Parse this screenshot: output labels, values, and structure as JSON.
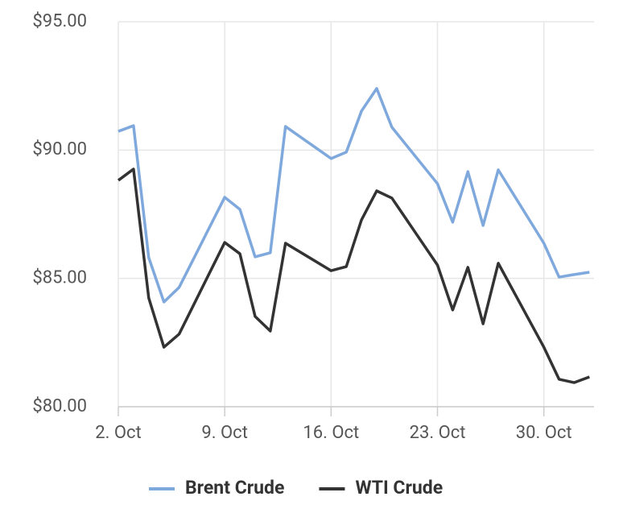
{
  "chart_data": {
    "type": "line",
    "x": [
      2,
      3,
      4,
      5,
      6,
      9,
      10,
      11,
      12,
      13,
      16,
      17,
      18,
      19,
      20,
      23,
      24,
      25,
      26,
      27,
      30,
      31,
      32,
      33
    ],
    "xlim": [
      2,
      33.3
    ],
    "xticks": [
      {
        "value": 2,
        "label": "2. Oct"
      },
      {
        "value": 9,
        "label": "9. Oct"
      },
      {
        "value": 16,
        "label": "16. Oct"
      },
      {
        "value": 23,
        "label": "23. Oct"
      },
      {
        "value": 30,
        "label": "30. Oct"
      }
    ],
    "ylim": [
      80,
      95
    ],
    "yticks": [
      {
        "value": 80,
        "label": "$80.00"
      },
      {
        "value": 85,
        "label": "$85.00"
      },
      {
        "value": 90,
        "label": "$90.00"
      },
      {
        "value": 95,
        "label": "$95.00"
      }
    ],
    "grid": true,
    "legend": "bottom",
    "series": [
      {
        "name": "Brent Crude",
        "color": "#7fa9dd",
        "values": [
          90.73,
          90.95,
          85.81,
          84.08,
          84.65,
          88.16,
          87.69,
          85.84,
          86.0,
          90.92,
          89.67,
          89.92,
          91.52,
          92.4,
          90.89,
          88.69,
          87.19,
          89.16,
          87.06,
          89.23,
          86.37,
          85.05,
          85.15,
          85.24
        ]
      },
      {
        "name": "WTI Crude",
        "color": "#333333",
        "values": [
          88.82,
          89.26,
          84.24,
          82.32,
          82.83,
          86.4,
          85.96,
          83.52,
          82.95,
          86.37,
          85.3,
          85.46,
          87.28,
          88.41,
          88.13,
          85.52,
          83.77,
          85.43,
          83.23,
          85.59,
          82.32,
          81.07,
          80.94,
          81.16
        ]
      }
    ]
  }
}
